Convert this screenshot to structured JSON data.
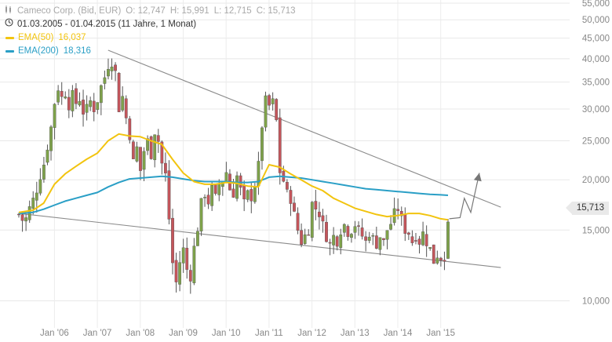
{
  "header": {
    "instrument": "Cameco Corp. (Bid, EUR)",
    "ohlc": {
      "o_label": "O:",
      "o_value": "12,747",
      "h_label": "H:",
      "h_value": "15,991",
      "l_label": "L:",
      "l_value": "12,715",
      "c_label": "C:",
      "c_value": "15,713"
    },
    "period": "01.03.2005 - 01.04.2015 (11 Jahre, 1 Monat)",
    "icons": {
      "instrument": "candlestick-icon",
      "period": "clock-icon"
    }
  },
  "legend": {
    "ema50": {
      "label": "EMA(50)",
      "value": "16,037",
      "color": "#f2c40f"
    },
    "ema200": {
      "label": "EMA(200)",
      "value": "18,316",
      "color": "#2a9fc6"
    }
  },
  "last_price_badge": "15,713",
  "chart_data": {
    "type": "candlestick",
    "x_range": [
      "2005-03",
      "2015-04"
    ],
    "y_scale": "log",
    "ylim": [
      8.8,
      56
    ],
    "y_ticks": [
      {
        "v": 10,
        "label": "10,000"
      },
      {
        "v": 15,
        "label": "15,000"
      },
      {
        "v": 20,
        "label": "20,000"
      },
      {
        "v": 25,
        "label": "25,000"
      },
      {
        "v": 30,
        "label": "30,000"
      },
      {
        "v": 35,
        "label": "35,000"
      },
      {
        "v": 40,
        "label": "40,000"
      },
      {
        "v": 45,
        "label": "45,000"
      },
      {
        "v": 50,
        "label": "50,000"
      },
      {
        "v": 55,
        "label": "55,000"
      }
    ],
    "x_ticks": [
      {
        "t": 2006.0,
        "label": "Jan '06"
      },
      {
        "t": 2007.0,
        "label": "Jan '07"
      },
      {
        "t": 2008.0,
        "label": "Jan '08"
      },
      {
        "t": 2009.0,
        "label": "Jan '09"
      },
      {
        "t": 2010.0,
        "label": "Jan '10"
      },
      {
        "t": 2011.0,
        "label": "Jan '11"
      },
      {
        "t": 2012.0,
        "label": "Jan '12"
      },
      {
        "t": 2013.0,
        "label": "Jan '13"
      },
      {
        "t": 2014.0,
        "label": "Jan '14"
      },
      {
        "t": 2015.0,
        "label": "Jan '15"
      }
    ],
    "grid": true,
    "up_color": "#7ea24a",
    "down_color": "#c4555b",
    "close_path": [
      [
        2005.17,
        16.4
      ],
      [
        2005.3,
        15.6
      ],
      [
        2005.42,
        17.0
      ],
      [
        2005.5,
        17.8
      ],
      [
        2005.58,
        18.8
      ],
      [
        2005.67,
        20.5
      ],
      [
        2005.75,
        21.8
      ],
      [
        2005.83,
        24.0
      ],
      [
        2005.92,
        27.0
      ],
      [
        2006.0,
        31.0
      ],
      [
        2006.08,
        34.0
      ],
      [
        2006.17,
        32.0
      ],
      [
        2006.25,
        33.0
      ],
      [
        2006.33,
        30.5
      ],
      [
        2006.42,
        32.5
      ],
      [
        2006.5,
        31.0
      ],
      [
        2006.58,
        32.0
      ],
      [
        2006.67,
        29.5
      ],
      [
        2006.75,
        30.0
      ],
      [
        2006.83,
        31.5
      ],
      [
        2006.92,
        30.0
      ],
      [
        2007.0,
        31.5
      ],
      [
        2007.08,
        34.0
      ],
      [
        2007.17,
        36.0
      ],
      [
        2007.25,
        38.5
      ],
      [
        2007.33,
        39.5
      ],
      [
        2007.42,
        37.0
      ],
      [
        2007.5,
        30.0
      ],
      [
        2007.58,
        32.5
      ],
      [
        2007.67,
        28.5
      ],
      [
        2007.75,
        26.0
      ],
      [
        2007.83,
        22.0
      ],
      [
        2007.92,
        24.0
      ],
      [
        2008.0,
        21.0
      ],
      [
        2008.08,
        23.5
      ],
      [
        2008.17,
        25.0
      ],
      [
        2008.25,
        23.0
      ],
      [
        2008.33,
        26.5
      ],
      [
        2008.42,
        25.0
      ],
      [
        2008.5,
        22.0
      ],
      [
        2008.58,
        21.0
      ],
      [
        2008.67,
        16.0
      ],
      [
        2008.75,
        12.5
      ],
      [
        2008.83,
        11.0
      ],
      [
        2008.92,
        12.5
      ],
      [
        2009.0,
        13.5
      ],
      [
        2009.08,
        12.0
      ],
      [
        2009.17,
        11.5
      ],
      [
        2009.25,
        13.5
      ],
      [
        2009.33,
        15.0
      ],
      [
        2009.42,
        17.5
      ],
      [
        2009.5,
        18.5
      ],
      [
        2009.58,
        17.5
      ],
      [
        2009.67,
        19.0
      ],
      [
        2009.75,
        18.0
      ],
      [
        2009.83,
        19.5
      ],
      [
        2009.92,
        20.0
      ],
      [
        2010.0,
        21.0
      ],
      [
        2010.08,
        19.0
      ],
      [
        2010.17,
        18.5
      ],
      [
        2010.25,
        20.5
      ],
      [
        2010.33,
        19.0
      ],
      [
        2010.42,
        17.5
      ],
      [
        2010.5,
        18.5
      ],
      [
        2010.58,
        18.0
      ],
      [
        2010.67,
        19.5
      ],
      [
        2010.75,
        21.5
      ],
      [
        2010.83,
        27.0
      ],
      [
        2010.92,
        31.5
      ],
      [
        2011.0,
        30.5
      ],
      [
        2011.08,
        31.5
      ],
      [
        2011.17,
        28.0
      ],
      [
        2011.25,
        21.0
      ],
      [
        2011.33,
        20.0
      ],
      [
        2011.42,
        18.5
      ],
      [
        2011.5,
        18.0
      ],
      [
        2011.58,
        16.5
      ],
      [
        2011.67,
        15.0
      ],
      [
        2011.75,
        14.0
      ],
      [
        2011.83,
        14.5
      ],
      [
        2011.92,
        15.0
      ],
      [
        2012.0,
        17.5
      ],
      [
        2012.08,
        17.0
      ],
      [
        2012.17,
        16.5
      ],
      [
        2012.25,
        15.5
      ],
      [
        2012.33,
        14.5
      ],
      [
        2012.42,
        13.8
      ],
      [
        2012.5,
        14.5
      ],
      [
        2012.58,
        14.0
      ],
      [
        2012.67,
        15.0
      ],
      [
        2012.75,
        15.5
      ],
      [
        2012.83,
        14.8
      ],
      [
        2012.92,
        15.0
      ],
      [
        2013.0,
        15.5
      ],
      [
        2013.08,
        15.0
      ],
      [
        2013.17,
        14.5
      ],
      [
        2013.25,
        14.0
      ],
      [
        2013.33,
        14.8
      ],
      [
        2013.42,
        14.3
      ],
      [
        2013.5,
        13.8
      ],
      [
        2013.58,
        14.5
      ],
      [
        2013.67,
        14.0
      ],
      [
        2013.75,
        15.0
      ],
      [
        2013.83,
        15.5
      ],
      [
        2013.92,
        16.5
      ],
      [
        2014.0,
        17.0
      ],
      [
        2014.08,
        16.0
      ],
      [
        2014.17,
        15.0
      ],
      [
        2014.25,
        14.8
      ],
      [
        2014.33,
        14.0
      ],
      [
        2014.42,
        14.5
      ],
      [
        2014.5,
        14.0
      ],
      [
        2014.58,
        14.8
      ],
      [
        2014.67,
        14.0
      ],
      [
        2014.75,
        13.5
      ],
      [
        2014.83,
        12.5
      ],
      [
        2014.92,
        13.0
      ],
      [
        2015.0,
        12.8
      ],
      [
        2015.08,
        12.7
      ],
      [
        2015.17,
        15.7
      ]
    ],
    "ema50": [
      [
        2005.17,
        16.6
      ],
      [
        2005.5,
        16.8
      ],
      [
        2005.75,
        17.5
      ],
      [
        2006.0,
        19.5
      ],
      [
        2006.25,
        20.7
      ],
      [
        2006.5,
        21.6
      ],
      [
        2006.75,
        22.5
      ],
      [
        2007.0,
        23.3
      ],
      [
        2007.25,
        25.0
      ],
      [
        2007.5,
        26.0
      ],
      [
        2007.75,
        25.7
      ],
      [
        2008.0,
        25.6
      ],
      [
        2008.25,
        25.0
      ],
      [
        2008.5,
        24.5
      ],
      [
        2008.75,
        22.5
      ],
      [
        2009.0,
        20.8
      ],
      [
        2009.25,
        19.8
      ],
      [
        2009.5,
        19.5
      ],
      [
        2009.75,
        19.5
      ],
      [
        2010.0,
        19.7
      ],
      [
        2010.25,
        19.6
      ],
      [
        2010.5,
        19.3
      ],
      [
        2010.75,
        19.2
      ],
      [
        2011.0,
        21.8
      ],
      [
        2011.25,
        21.5
      ],
      [
        2011.5,
        20.7
      ],
      [
        2011.75,
        20.0
      ],
      [
        2012.0,
        19.3
      ],
      [
        2012.25,
        18.8
      ],
      [
        2012.5,
        18.0
      ],
      [
        2012.75,
        17.5
      ],
      [
        2013.0,
        17.0
      ],
      [
        2013.25,
        16.7
      ],
      [
        2013.5,
        16.4
      ],
      [
        2013.75,
        16.2
      ],
      [
        2014.0,
        16.3
      ],
      [
        2014.25,
        16.5
      ],
      [
        2014.5,
        16.5
      ],
      [
        2014.75,
        16.3
      ],
      [
        2015.0,
        16.0
      ],
      [
        2015.17,
        15.9
      ]
    ],
    "ema200": [
      [
        2005.17,
        16.5
      ],
      [
        2005.5,
        16.6
      ],
      [
        2005.75,
        16.9
      ],
      [
        2006.0,
        17.3
      ],
      [
        2006.25,
        17.7
      ],
      [
        2006.5,
        18.0
      ],
      [
        2006.75,
        18.3
      ],
      [
        2007.0,
        18.6
      ],
      [
        2007.25,
        19.2
      ],
      [
        2007.5,
        19.7
      ],
      [
        2007.75,
        20.1
      ],
      [
        2008.0,
        20.2
      ],
      [
        2008.25,
        20.3
      ],
      [
        2008.5,
        20.4
      ],
      [
        2008.75,
        20.3
      ],
      [
        2009.0,
        20.1
      ],
      [
        2009.25,
        19.9
      ],
      [
        2009.5,
        19.8
      ],
      [
        2009.75,
        19.8
      ],
      [
        2010.0,
        19.8
      ],
      [
        2010.25,
        19.7
      ],
      [
        2010.5,
        19.7
      ],
      [
        2010.75,
        19.8
      ],
      [
        2011.0,
        20.3
      ],
      [
        2011.25,
        20.4
      ],
      [
        2011.5,
        20.3
      ],
      [
        2011.75,
        20.2
      ],
      [
        2012.0,
        20.0
      ],
      [
        2012.25,
        19.8
      ],
      [
        2012.5,
        19.6
      ],
      [
        2012.75,
        19.4
      ],
      [
        2013.0,
        19.2
      ],
      [
        2013.25,
        19.0
      ],
      [
        2013.5,
        18.9
      ],
      [
        2013.75,
        18.8
      ],
      [
        2014.0,
        18.7
      ],
      [
        2014.25,
        18.6
      ],
      [
        2014.5,
        18.5
      ],
      [
        2014.75,
        18.4
      ],
      [
        2015.0,
        18.35
      ],
      [
        2015.17,
        18.3
      ]
    ],
    "trendlines": [
      {
        "from": [
          2007.25,
          42.0
        ],
        "to": [
          2016.4,
          17.1
        ]
      },
      {
        "from": [
          2005.17,
          16.5
        ],
        "to": [
          2016.4,
          12.1
        ]
      }
    ],
    "projection": [
      [
        2015.2,
        16.0
      ],
      [
        2015.45,
        16.1
      ],
      [
        2015.55,
        18.0
      ],
      [
        2015.7,
        16.6
      ],
      [
        2015.9,
        20.8
      ]
    ]
  }
}
